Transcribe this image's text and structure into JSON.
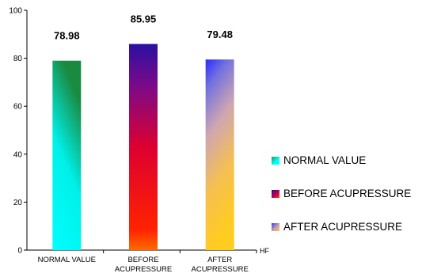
{
  "chart_data": {
    "type": "bar",
    "categories": [
      [
        "NORMAL VALUE"
      ],
      [
        "BEFORE",
        "ACUPRESSURE"
      ],
      [
        "AFTER",
        "ACUPRESSURE"
      ]
    ],
    "values": [
      78.98,
      85.95,
      79.48
    ],
    "value_labels": [
      "78.98",
      "85.95",
      "79.48"
    ],
    "ylim": [
      0,
      100
    ],
    "yticks": [
      0,
      20,
      40,
      60,
      80,
      100
    ],
    "axis_unit_label": "HF",
    "grid": false,
    "legend_position": "right",
    "series_colors": [
      {
        "start": "#00ffff",
        "end": "#1a9a50"
      },
      {
        "start": "#ff5000",
        "mid": "#cc0044",
        "end": "#330099"
      },
      {
        "start": "#ffcc22",
        "mid": "#c8a0b0",
        "end": "#3333ff"
      }
    ],
    "legend": [
      {
        "label": "NORMAL VALUE"
      },
      {
        "label": "BEFORE ACUPRESSURE"
      },
      {
        "label": "AFTER ACUPRESSURE"
      }
    ]
  }
}
